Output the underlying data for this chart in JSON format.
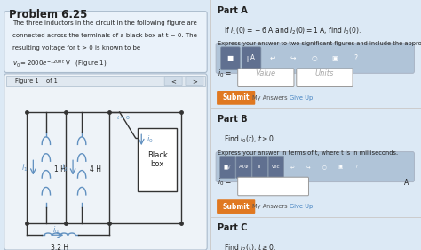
{
  "title": "Problem 6.25",
  "part_a_title": "Part A",
  "part_a_eq": "If $i_1(0) = -6$ A and $i_2(0) = 1$ A, find $i_0(0)$.",
  "part_a_express": "Express your answer to two significant figures and include the appropriate units.",
  "part_a_value_ph": "Value",
  "part_a_units_ph": "Units",
  "part_b_title": "Part B",
  "part_b_eq": "Find $i_0(t)$, $t \\geq 0$.",
  "part_b_express": "Express your answer in terms of t, where t is in milliseconds.",
  "part_b_unit": "A",
  "part_c_title": "Part C",
  "part_c_eq": "Find $i_2(t)$, $t \\geq 0$.",
  "submit_color": "#e07820",
  "my_answers_text": "My Answers",
  "give_up_text": "Give Up",
  "inductor1": "1 H",
  "inductor2": "4 H",
  "inductor3": "3.2 H",
  "black_box_label": "Black\nbox",
  "left_bg": "#dce9f5",
  "right_bg": "#ffffff",
  "toolbar_bg": "#b0c4d8",
  "figure_bg": "#eef3f8",
  "text_color": "#222222",
  "circuit_line_color": "#333333",
  "inductor_color": "#6090c0",
  "switch_color": "#5090c0",
  "prob_lines": [
    "The three inductors in the circuit in the following figure are",
    "connected across the terminals of a black box at t = 0. The",
    "resulting voltage for t > 0 is known to be",
    "$v_0 = 2000e^{-1200t}$ V   (Figure 1)"
  ]
}
